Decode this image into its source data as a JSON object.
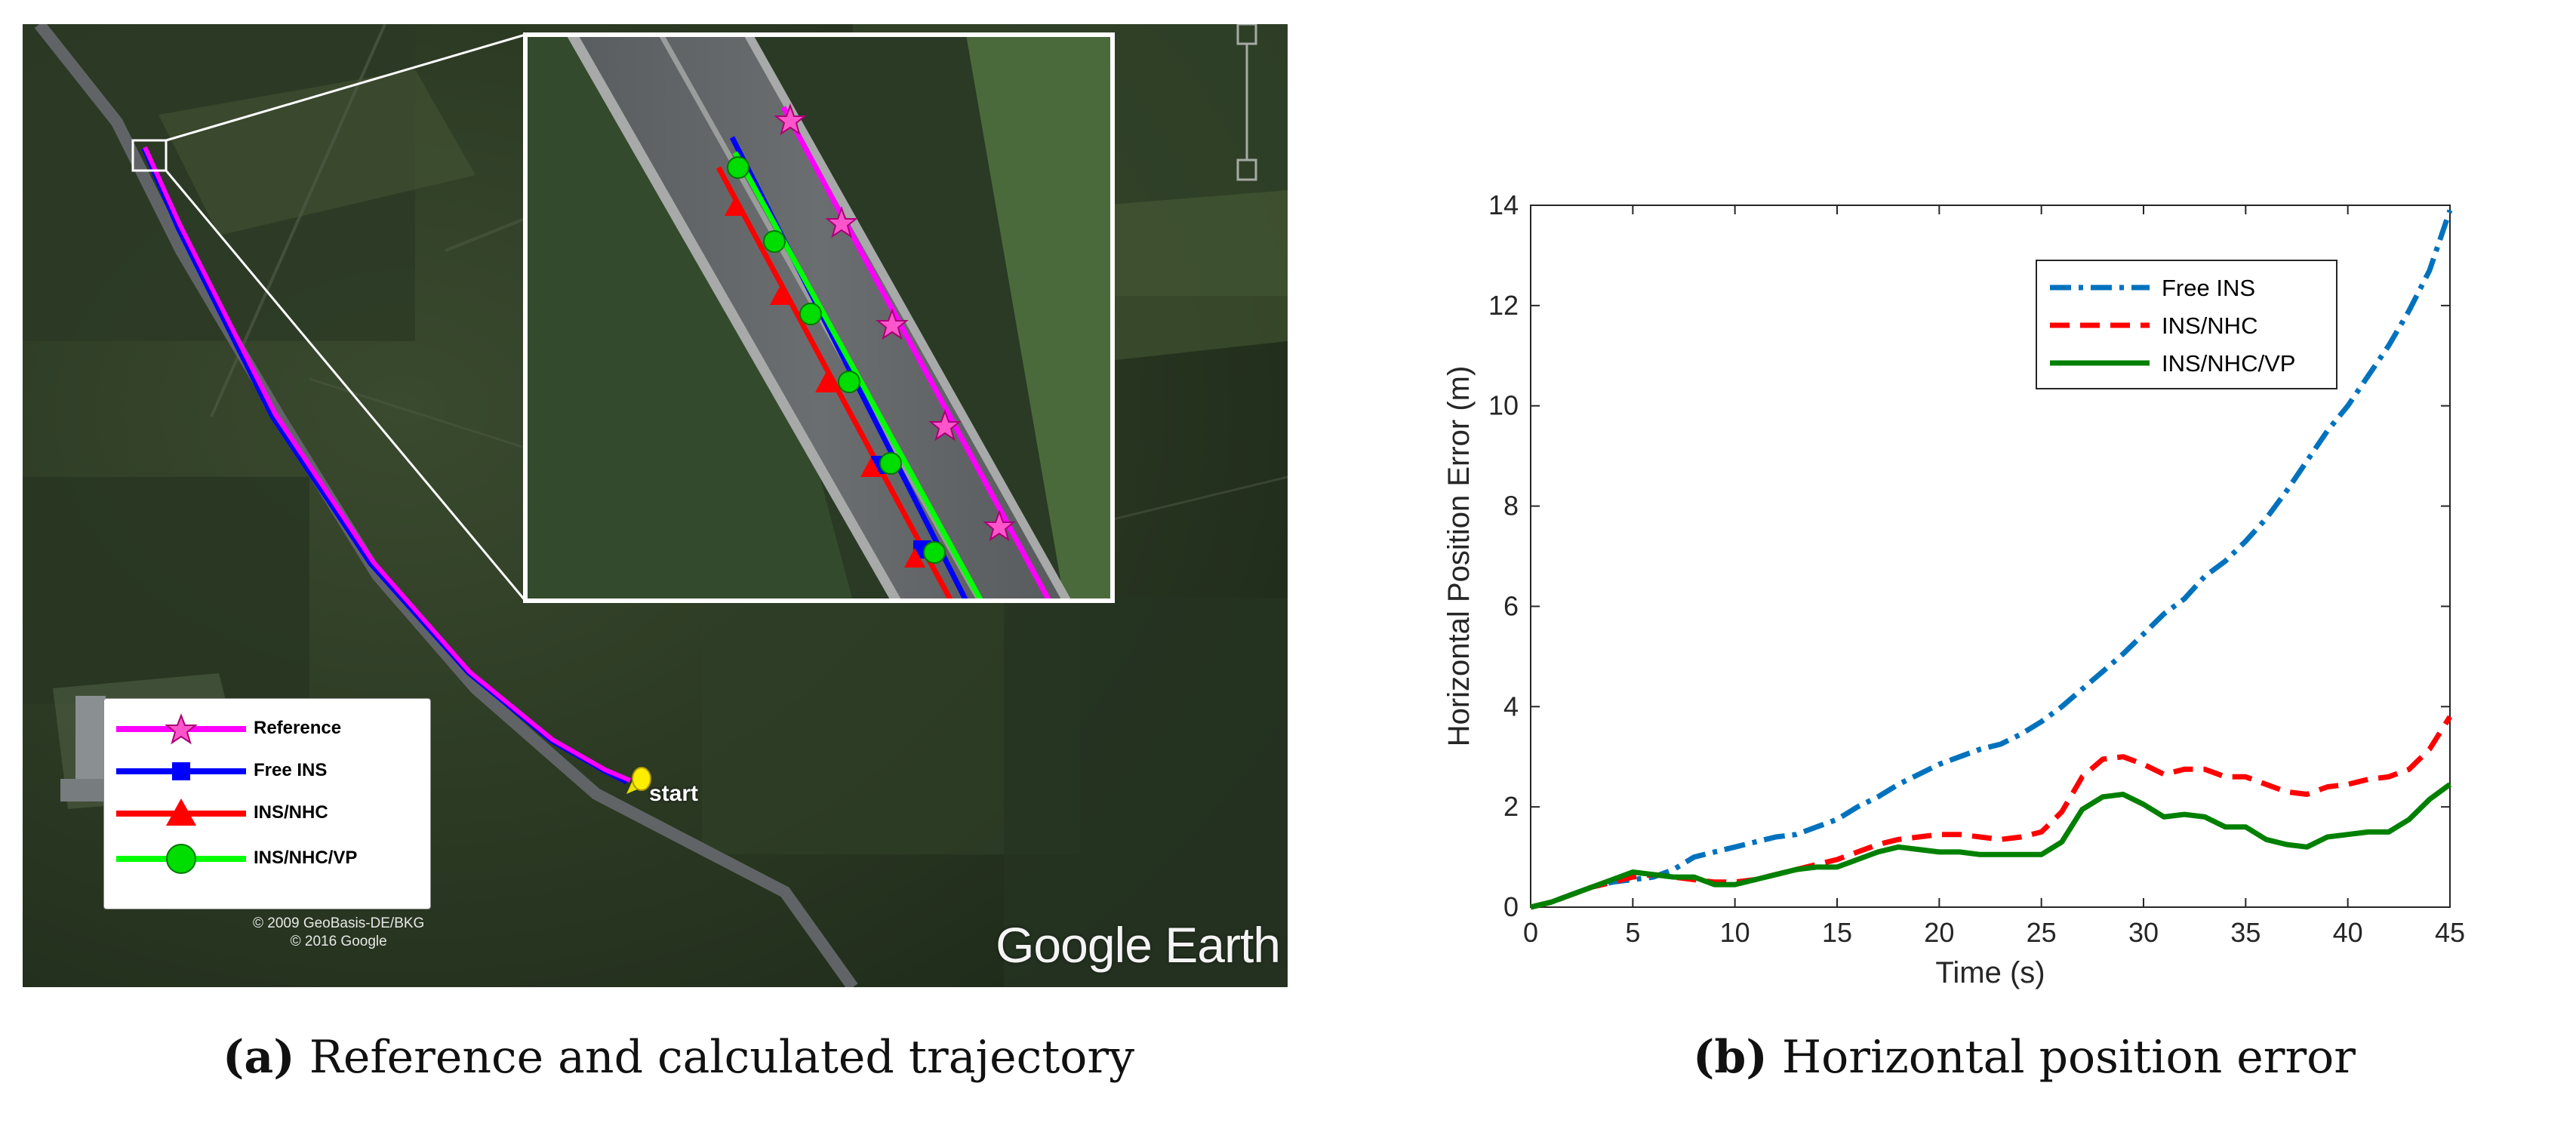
{
  "map": {
    "credit_line1": "© 2009 GeoBasis-DE/BKG",
    "credit_line2": "© 2016 Google",
    "brand_google": "Google",
    "brand_earth": "Earth",
    "start_label": "start",
    "legend": [
      {
        "label": "Reference",
        "color": "#ff00ff",
        "marker": "star",
        "marker_color": "#ff55cc"
      },
      {
        "label": "Free INS",
        "color": "#0000ff",
        "marker": "square",
        "marker_color": "#0000ff"
      },
      {
        "label": "INS/NHC",
        "color": "#ff0000",
        "marker": "triangle",
        "marker_color": "#ff0000"
      },
      {
        "label": "INS/NHC/VP",
        "color": "#00ff00",
        "marker": "circle",
        "marker_color": "#00dd00"
      }
    ]
  },
  "captions": {
    "a_tag": "(a)",
    "a_text": "Reference and calculated trajectory",
    "b_tag": "(b)",
    "b_text": "Horizontal position error"
  },
  "chart_data": {
    "type": "line",
    "title": "",
    "xlabel": "Time (s)",
    "ylabel": "Horizontal Position Error (m)",
    "xlim": [
      0,
      45
    ],
    "ylim": [
      0,
      14
    ],
    "xticks": [
      0,
      5,
      10,
      15,
      20,
      25,
      30,
      35,
      40,
      45
    ],
    "yticks": [
      0,
      2,
      4,
      6,
      8,
      10,
      12,
      14
    ],
    "grid": false,
    "legend_position": "top-right",
    "series": [
      {
        "name": "Free INS",
        "color": "#0072bd",
        "dash": "dash-dot",
        "x": [
          0,
          1,
          2,
          3,
          4,
          5,
          6,
          7,
          8,
          9,
          10,
          11,
          12,
          13,
          14,
          15,
          16,
          17,
          18,
          19,
          20,
          21,
          22,
          23,
          24,
          25,
          26,
          27,
          28,
          29,
          30,
          31,
          32,
          33,
          34,
          35,
          36,
          37,
          38,
          39,
          40,
          41,
          42,
          43,
          44,
          45
        ],
        "y": [
          0,
          0.1,
          0.25,
          0.4,
          0.5,
          0.55,
          0.6,
          0.75,
          1.0,
          1.1,
          1.2,
          1.3,
          1.4,
          1.45,
          1.6,
          1.75,
          2.0,
          2.2,
          2.45,
          2.65,
          2.85,
          3.0,
          3.15,
          3.25,
          3.45,
          3.7,
          4.0,
          4.35,
          4.7,
          5.05,
          5.45,
          5.85,
          6.15,
          6.6,
          6.9,
          7.3,
          7.75,
          8.3,
          8.9,
          9.5,
          10.0,
          10.6,
          11.2,
          11.9,
          12.7,
          13.9
        ]
      },
      {
        "name": "INS/NHC",
        "color": "#ff0000",
        "dash": "dashed",
        "x": [
          0,
          1,
          2,
          3,
          4,
          5,
          6,
          7,
          8,
          9,
          10,
          11,
          12,
          13,
          14,
          15,
          16,
          17,
          18,
          19,
          20,
          21,
          22,
          23,
          24,
          25,
          26,
          27,
          28,
          29,
          30,
          31,
          32,
          33,
          34,
          35,
          36,
          37,
          38,
          39,
          40,
          41,
          42,
          43,
          44,
          45
        ],
        "y": [
          0,
          0.1,
          0.25,
          0.4,
          0.5,
          0.6,
          0.65,
          0.6,
          0.55,
          0.5,
          0.5,
          0.55,
          0.65,
          0.75,
          0.85,
          0.95,
          1.1,
          1.25,
          1.35,
          1.4,
          1.45,
          1.45,
          1.4,
          1.35,
          1.4,
          1.5,
          1.9,
          2.6,
          2.95,
          3.0,
          2.85,
          2.65,
          2.75,
          2.75,
          2.6,
          2.6,
          2.45,
          2.3,
          2.25,
          2.4,
          2.45,
          2.55,
          2.6,
          2.75,
          3.15,
          3.8
        ]
      },
      {
        "name": "INS/NHC/VP",
        "color": "#008000",
        "dash": "solid",
        "x": [
          0,
          1,
          2,
          3,
          4,
          5,
          6,
          7,
          8,
          9,
          10,
          11,
          12,
          13,
          14,
          15,
          16,
          17,
          18,
          19,
          20,
          21,
          22,
          23,
          24,
          25,
          26,
          27,
          28,
          29,
          30,
          31,
          32,
          33,
          34,
          35,
          36,
          37,
          38,
          39,
          40,
          41,
          42,
          43,
          44,
          45
        ],
        "y": [
          0,
          0.1,
          0.25,
          0.4,
          0.55,
          0.7,
          0.65,
          0.6,
          0.6,
          0.45,
          0.45,
          0.55,
          0.65,
          0.75,
          0.8,
          0.8,
          0.95,
          1.1,
          1.2,
          1.15,
          1.1,
          1.1,
          1.05,
          1.05,
          1.05,
          1.05,
          1.3,
          1.95,
          2.2,
          2.25,
          2.05,
          1.8,
          1.85,
          1.8,
          1.6,
          1.6,
          1.35,
          1.25,
          1.2,
          1.4,
          1.45,
          1.5,
          1.5,
          1.75,
          2.15,
          2.45
        ]
      }
    ]
  }
}
